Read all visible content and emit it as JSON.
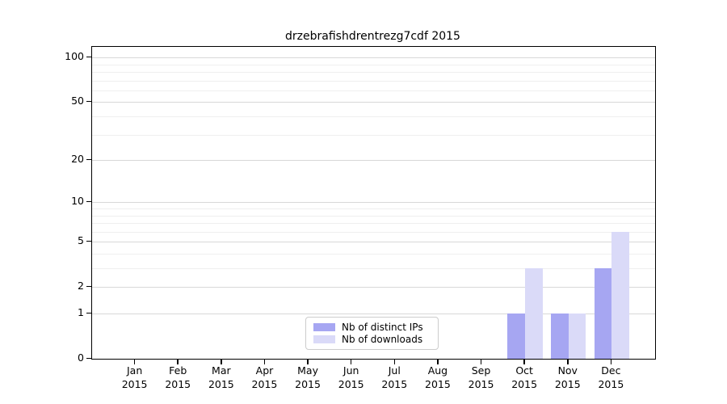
{
  "chart_data": {
    "type": "bar",
    "title": "drzebrafishdrentrezg7cdf 2015",
    "categories": [
      "Jan",
      "Feb",
      "Mar",
      "Apr",
      "May",
      "Jun",
      "Jul",
      "Aug",
      "Sep",
      "Oct",
      "Nov",
      "Dec"
    ],
    "category_year": "2015",
    "series": [
      {
        "name": "Nb of distinct IPs",
        "color": "#a6a6f2",
        "values": [
          0,
          0,
          0,
          0,
          0,
          0,
          0,
          0,
          0,
          1,
          1,
          3
        ]
      },
      {
        "name": "Nb of downloads",
        "color": "#dadaf8",
        "values": [
          0,
          0,
          0,
          0,
          0,
          0,
          0,
          0,
          0,
          3,
          1,
          6
        ]
      }
    ],
    "yscale": "log1p",
    "yticks": [
      0,
      1,
      2,
      5,
      10,
      20,
      50,
      100
    ],
    "minor_yticks": [
      3,
      4,
      6,
      7,
      8,
      9,
      30,
      40,
      60,
      70,
      80,
      90
    ],
    "ylim": [
      0,
      118
    ],
    "xlabel": "",
    "ylabel": "",
    "grid": "horizontal",
    "grid_major_color": "#d8d8d8",
    "grid_minor_color": "#efefef",
    "legend_position": "lower-center-inside"
  }
}
